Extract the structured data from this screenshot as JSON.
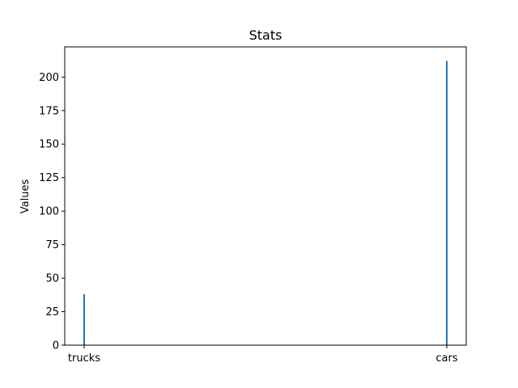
{
  "chart_data": {
    "type": "bar",
    "title": "Stats",
    "xlabel": "",
    "ylabel": "Values",
    "categories": [
      "trucks",
      "cars"
    ],
    "values": [
      38,
      212
    ],
    "ylim": [
      0,
      222.5
    ],
    "yticks": [
      0,
      25,
      50,
      75,
      100,
      125,
      150,
      175,
      200
    ],
    "grid": false,
    "bar_color": "#1f77b4"
  }
}
